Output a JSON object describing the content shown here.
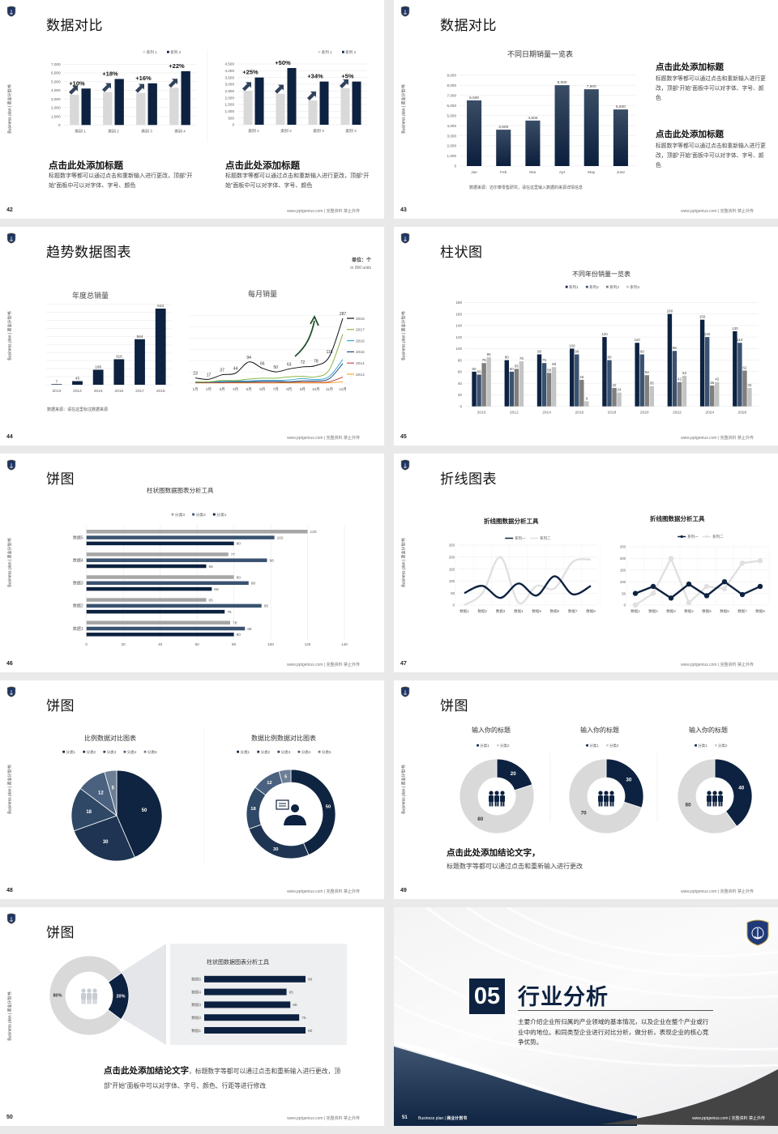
{
  "common": {
    "side_text": "Business plan | 商业计划书",
    "footer": "www.pptgenius.com | 完整资料 禁止外传",
    "colors": {
      "navy": "#0d2240",
      "steel": "#3a5270",
      "gray": "#7f7f7f",
      "light": "#d9d9d9",
      "green_arrow": "#1f4d2b"
    }
  },
  "slides": [
    {
      "page": "42",
      "title": "数据对比",
      "blocks": [
        {
          "heading": "点击此处添加标题",
          "body": "标题数字等都可以通过点击和重新输入进行更改，顶部“开始”面板中可以对字体、字号、颜色"
        },
        {
          "heading": "点击此处添加标题",
          "body": "标题数字等都可以通过点击和重新输入进行更改，顶部“开始”面板中可以对字体、字号、颜色"
        }
      ]
    },
    {
      "page": "43",
      "title": "数据对比",
      "source": "数据来源：迈尔泰零售研究，请在这里输入数据的来源详情信息",
      "blocks": [
        {
          "heading": "点击此处添加标题",
          "body": "标题数字等都可以通过点击和重新输入进行更改，顶部“开始”面板中可以对字体、字号、颜色"
        },
        {
          "heading": "点击此处添加标题",
          "body": "标题数字等都可以通过点击和重新输入进行更改，顶部“开始”面板中可以对字体、字号、颜色"
        }
      ]
    },
    {
      "page": "44",
      "title": "趋势数据图表",
      "unit": "单位：个",
      "unit_sub": "in 000 units",
      "source": "数据来源：请在这里标注数据来源"
    },
    {
      "page": "45",
      "title": "柱状图"
    },
    {
      "page": "46",
      "title": "饼图"
    },
    {
      "page": "47",
      "title": "折线图表"
    },
    {
      "page": "48",
      "title": "饼图"
    },
    {
      "page": "49",
      "title": "饼图",
      "conclusion": "点击此处添加结论文字，",
      "body": "标题数字等都可以通过点击和重新输入进行更改"
    },
    {
      "page": "50",
      "title": "饼图",
      "conclusion": "点击此处添加结论文字",
      "body": "，标题数字等都可以通过点击和重新输入进行更改，顶部“开始”面板中可以对字体、字号、颜色、行距等进行修改"
    },
    {
      "page": "51",
      "number": "05",
      "title": "行业分析",
      "body": "主要介绍企业所归属的产业领域的基本情况，以及企业在整个产业或行业中的地位。和同类型企业进行对比分析，做分析，表现企业的核心竞争优势。",
      "footer_en": "Business plan",
      "footer_cn": "商业计划书"
    }
  ],
  "chart_data": [
    {
      "type": "bar",
      "categories": [
        "类别 1",
        "类别 2",
        "类别 3",
        "类别 4"
      ],
      "series": [
        {
          "name": "系列 1",
          "values": [
            3500,
            3800,
            3700,
            4300
          ]
        },
        {
          "name": "系列 2",
          "values": [
            4200,
            5300,
            4800,
            6200
          ]
        }
      ],
      "annotations": [
        "+10%",
        "+18%",
        "+16%",
        "+22%"
      ],
      "ylim": [
        0,
        7000
      ],
      "ytick_step": 1000,
      "legend": "top-right",
      "grid": true
    },
    {
      "type": "bar",
      "categories": [
        "类别 1",
        "类别 2",
        "类别 3",
        "类别 4"
      ],
      "series": [
        {
          "name": "系列 1",
          "values": [
            2500,
            2300,
            1800,
            2700
          ]
        },
        {
          "name": "系列 2",
          "values": [
            3500,
            4200,
            3200,
            3200
          ]
        }
      ],
      "annotations": [
        "+25%",
        "+50%",
        "+34%",
        "+5%"
      ],
      "ylim": [
        0,
        4500
      ],
      "ytick_step": 500,
      "legend": "top-right",
      "grid": true
    },
    {
      "type": "bar",
      "title": "不同日期销量一览表",
      "categories": [
        "Jan",
        "Feb",
        "Mar",
        "Apr",
        "May",
        "June"
      ],
      "series": [
        {
          "values": [
            6500,
            3600,
            4500,
            8000,
            7600,
            5600
          ]
        }
      ],
      "ylim": [
        0,
        9000
      ],
      "ytick_step": 1000,
      "data_labels": true,
      "grid": true
    },
    {
      "type": "bar",
      "title": "年度总销量",
      "categories": [
        "2013",
        "2014",
        "2015",
        "2016",
        "2017",
        "2018"
      ],
      "series": [
        {
          "values": [
            7,
            45,
            186,
            316,
            564,
            943
          ]
        }
      ],
      "ylim": [
        0,
        1000
      ],
      "data_labels": true,
      "grid": true
    },
    {
      "type": "line",
      "title": "每月销量",
      "categories": [
        "1月",
        "2月",
        "3月",
        "4月",
        "5月",
        "6月",
        "7月",
        "8月",
        "9月",
        "10月",
        "11月",
        "12月"
      ],
      "series": [
        {
          "name": "2018",
          "color": "#111111",
          "values": [
            23,
            17,
            37,
            44,
            94,
            66,
            50,
            63,
            72,
            78,
            118,
            287
          ]
        },
        {
          "name": "2017",
          "color": "#8db646",
          "values": [
            6,
            6,
            12,
            12,
            18,
            22,
            22,
            28,
            30,
            28,
            60,
            217
          ]
        },
        {
          "name": "2016",
          "color": "#3aa9d8",
          "values": [
            5,
            5,
            8,
            10,
            10,
            12,
            12,
            14,
            20,
            16,
            30,
            105
          ]
        },
        {
          "name": "2015",
          "color": "#1f4e79",
          "values": [
            4,
            4,
            6,
            6,
            6,
            8,
            8,
            6,
            10,
            10,
            20,
            87
          ]
        },
        {
          "name": "2014",
          "color": "#c0504d",
          "values": [
            2,
            2,
            2,
            3,
            3,
            3,
            3,
            4,
            4,
            4,
            6,
            27
          ]
        },
        {
          "name": "2013",
          "color": "#f5a623",
          "values": [
            1,
            1,
            1,
            1,
            1,
            1,
            1,
            1,
            1,
            1,
            2,
            6
          ]
        }
      ],
      "data_labels_series": "2018",
      "ylim": [
        0,
        300
      ],
      "legend": "right",
      "grid": true
    },
    {
      "type": "bar",
      "title": "不同年份销量一览表",
      "categories": [
        "2010",
        "2012",
        "2014",
        "2016",
        "2018",
        "2020",
        "2022",
        "2024",
        "2026"
      ],
      "series": [
        {
          "name": "系列1",
          "values": [
            60,
            80,
            90,
            100,
            120,
            110,
            160,
            150,
            130
          ]
        },
        {
          "name": "系列2",
          "values": [
            55,
            60,
            75,
            90,
            80,
            90,
            96,
            120,
            110
          ]
        },
        {
          "name": "系列3",
          "values": [
            75,
            65,
            58,
            46,
            32,
            54,
            42,
            36,
            62
          ]
        },
        {
          "name": "系列4",
          "values": [
            85,
            78,
            68,
            9,
            24,
            35,
            53,
            42,
            32
          ]
        }
      ],
      "ylim": [
        0,
        180
      ],
      "ytick_step": 20,
      "data_labels": true,
      "legend": "top",
      "grid": true
    },
    {
      "type": "bar",
      "orientation": "horizontal",
      "title": "柱状图数据图表分析工具",
      "categories": [
        "数据1",
        "数据2",
        "数据3",
        "数据4",
        "数据5"
      ],
      "series": [
        {
          "name": "分类3",
          "values": [
            78,
            65,
            80,
            77,
            120
          ]
        },
        {
          "name": "分类2",
          "values": [
            86,
            95,
            88,
            98,
            102
          ]
        },
        {
          "name": "分类1",
          "values": [
            80,
            75,
            68,
            65,
            80
          ]
        }
      ],
      "xlim": [
        0,
        140
      ],
      "xtick_step": 20,
      "data_labels": true,
      "legend": "top",
      "grid": true
    },
    {
      "type": "line",
      "title": "折线图数据分析工具",
      "categories": [
        "数据1",
        "数据2",
        "数据3",
        "数据4",
        "数据5",
        "数据6",
        "数据7",
        "数据8"
      ],
      "series": [
        {
          "name": "系列一",
          "values": [
            50,
            80,
            30,
            90,
            40,
            120,
            45,
            80
          ]
        },
        {
          "name": "系列二",
          "values": [
            0,
            50,
            200,
            10,
            80,
            70,
            180,
            190
          ]
        }
      ],
      "ylim": [
        0,
        250
      ],
      "ytick_step": 50,
      "smooth": true,
      "markers": false,
      "legend": "top",
      "grid": true
    },
    {
      "type": "line",
      "title": "折线图数据分析工具",
      "categories": [
        "数据1",
        "数据2",
        "数据3",
        "数据4",
        "数据5",
        "数据6",
        "数据7",
        "数据8"
      ],
      "series": [
        {
          "name": "系列一",
          "values": [
            50,
            80,
            30,
            90,
            40,
            100,
            45,
            80
          ]
        },
        {
          "name": "系列二",
          "values": [
            0,
            50,
            200,
            10,
            80,
            70,
            180,
            190
          ]
        }
      ],
      "ylim": [
        0,
        250
      ],
      "ytick_step": 50,
      "smooth": false,
      "markers": true,
      "legend": "top",
      "grid": true
    },
    {
      "type": "pie",
      "title": "比例数据对比图表",
      "categories": [
        "分类1",
        "分类2",
        "分类3",
        "分类4",
        "分类5"
      ],
      "values": [
        50,
        30,
        18,
        12,
        5
      ],
      "legend": "top"
    },
    {
      "type": "pie",
      "donut": true,
      "title": "数据比例数据对比图表",
      "categories": [
        "分类1",
        "分类2",
        "分类3",
        "分类4",
        "分类5"
      ],
      "values": [
        50,
        30,
        18,
        12,
        5
      ],
      "legend": "top"
    },
    {
      "type": "pie",
      "donut": true,
      "title": "输入你的标题",
      "categories": [
        "分类1",
        "分类2"
      ],
      "values": [
        20,
        80
      ],
      "legend": "top"
    },
    {
      "type": "pie",
      "donut": true,
      "title": "输入你的标题",
      "categories": [
        "分类1",
        "分类2"
      ],
      "values": [
        30,
        70
      ],
      "legend": "top"
    },
    {
      "type": "pie",
      "donut": true,
      "title": "输入你的标题",
      "categories": [
        "分类1",
        "分类2"
      ],
      "values": [
        40,
        60
      ],
      "legend": "top"
    },
    {
      "type": "pie",
      "donut": true,
      "values": [
        80,
        20
      ],
      "value_labels": [
        "80%",
        "20%"
      ]
    },
    {
      "type": "bar",
      "orientation": "horizontal",
      "title": "柱状图数据图表分析工具",
      "categories": [
        "数据1",
        "数据2",
        "数据3",
        "数据4",
        "数据5"
      ],
      "series": [
        {
          "values": [
            80,
            75,
            68,
            65,
            80
          ]
        }
      ],
      "data_labels": true
    }
  ]
}
